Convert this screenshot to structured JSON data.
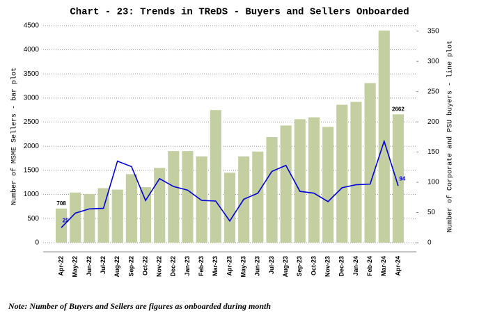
{
  "chart_data": {
    "type": "bar_line",
    "title": "Chart - 23: Trends in TReDS - Buyers and Sellers Onboarded",
    "y_label": "Number of MSME Sellers - bar plot",
    "y2_label": "Number of Corporate and PSU buyers - line plot",
    "note": "Note: Number of Buyers and Sellers are figures as onboarded during month",
    "categories": [
      "Apr-22",
      "May-22",
      "Jun-22",
      "Jul-22",
      "Aug-22",
      "Sep-22",
      "Oct-22",
      "Nov-22",
      "Dec-22",
      "Jan-23",
      "Feb-23",
      "Mar-23",
      "Apr-23",
      "May-23",
      "Jun-23",
      "Jul-23",
      "Aug-23",
      "Sep-23",
      "Oct-23",
      "Nov-23",
      "Dec-23",
      "Jan-24",
      "Feb-24",
      "Mar-24",
      "Apr-24"
    ],
    "series": [
      {
        "name": "MSME Sellers",
        "type": "bar",
        "color": "#c3cfa0",
        "values": [
          708,
          1040,
          1010,
          1130,
          1100,
          1420,
          1150,
          1550,
          1900,
          1900,
          1790,
          2750,
          1450,
          1790,
          1890,
          2190,
          2430,
          2560,
          2600,
          2400,
          2860,
          2920,
          3310,
          4400,
          2662
        ]
      },
      {
        "name": "Corporate and PSU buyers",
        "type": "line",
        "axis": "y2",
        "color": "#0000dd",
        "values": [
          25,
          49,
          56,
          57,
          135,
          126,
          70,
          106,
          93,
          87,
          70,
          69,
          36,
          72,
          82,
          118,
          128,
          85,
          82,
          68,
          91,
          96,
          97,
          168,
          94
        ]
      }
    ],
    "data_labels": "first_last",
    "ylim": [
      -190,
      4600
    ],
    "yticks": [
      0,
      500,
      1000,
      1500,
      2000,
      2500,
      3000,
      3500,
      4000,
      4500
    ],
    "y2lim": [
      -15,
      367
    ],
    "y2ticks": [
      0,
      50,
      100,
      150,
      200,
      250,
      300,
      350
    ],
    "grid": true
  }
}
